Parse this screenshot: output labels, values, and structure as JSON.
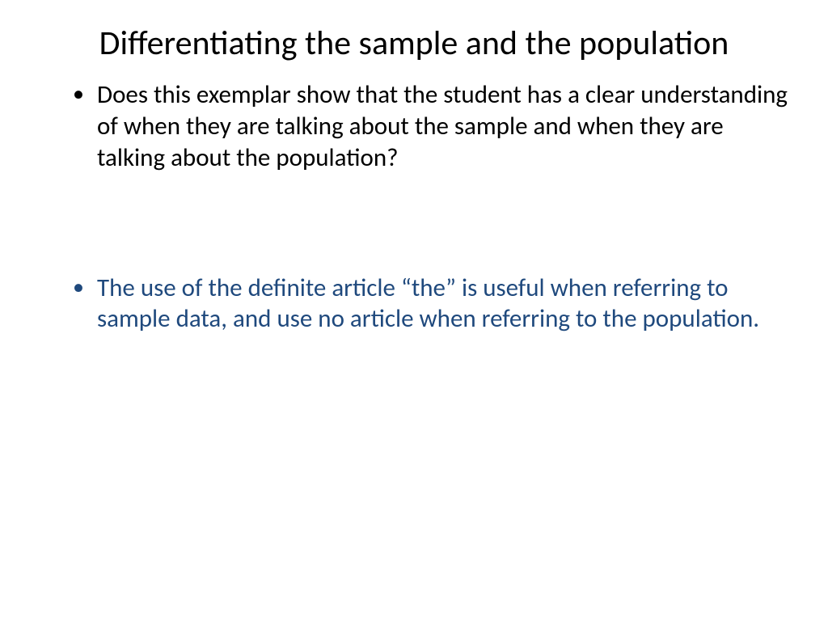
{
  "slide": {
    "title": "Differentiating the sample and the population",
    "bullets": [
      {
        "text": "Does this exemplar show that the student has a clear understanding of when they are talking about the sample and when they are talking about the population?",
        "color": "#000000",
        "style_class": "bullet-dark"
      },
      {
        "text": "The use of the definite article “the” is useful when referring to sample data, and use no article when referring to the population.",
        "color": "#1f497d",
        "style_class": "bullet-blue"
      }
    ],
    "background_color": "#ffffff",
    "title_fontsize": 42,
    "body_fontsize": 31,
    "font_family": "Calibri"
  }
}
